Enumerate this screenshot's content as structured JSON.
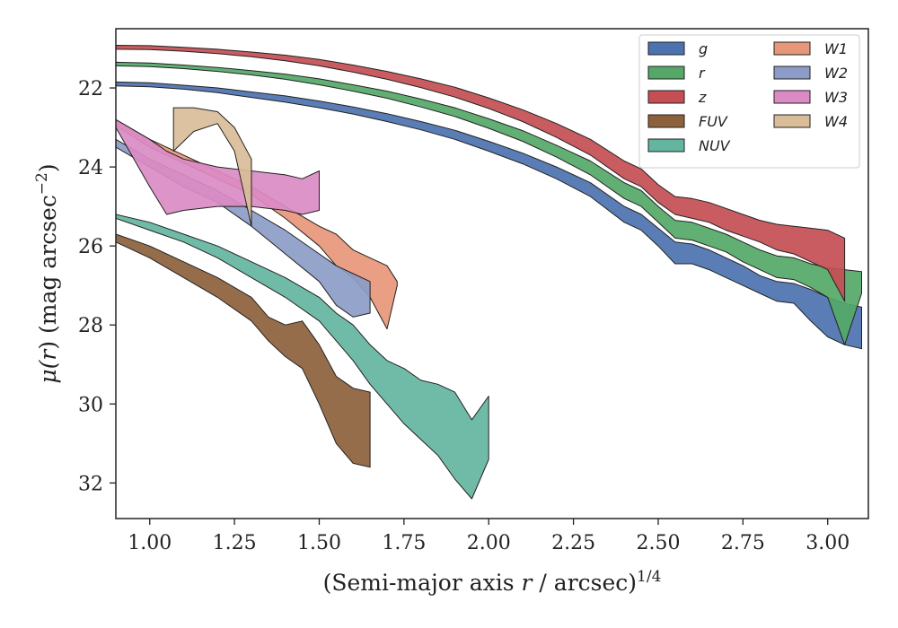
{
  "chart_data": {
    "type": "area",
    "xlabel": "(Semi-major axis r / arcsec)",
    "xlabel_parts": {
      "pre": "(Semi-major axis ",
      "var": "r",
      "post": " / arcsec)",
      "sup": "1/4"
    },
    "ylabel": "μ(r) (mag arcsec⁻²)",
    "ylabel_parts": {
      "mu": "μ(",
      "var": "r",
      "close": ") (mag arcsec",
      "sup": "−2",
      "end": ")"
    },
    "xlim": [
      0.9,
      3.12
    ],
    "ylim": [
      32.9,
      20.5
    ],
    "y_inverted": true,
    "xticks": [
      1.0,
      1.25,
      1.5,
      1.75,
      2.0,
      2.25,
      2.5,
      2.75,
      3.0
    ],
    "xtick_labels": [
      "1.00",
      "1.25",
      "1.50",
      "1.75",
      "2.00",
      "2.25",
      "2.50",
      "2.75",
      "3.00"
    ],
    "yticks": [
      22,
      24,
      26,
      28,
      30,
      32
    ],
    "ytick_labels": [
      "22",
      "24",
      "26",
      "28",
      "30",
      "32"
    ],
    "grid": false,
    "legend_position": "top-right",
    "legend_columns": 2,
    "series": [
      {
        "name": "g",
        "color": "#4c72b0",
        "x": [
          0.9,
          1.0,
          1.1,
          1.2,
          1.3,
          1.4,
          1.5,
          1.6,
          1.7,
          1.8,
          1.9,
          2.0,
          2.1,
          2.2,
          2.3,
          2.4,
          2.45,
          2.5,
          2.55,
          2.6,
          2.65,
          2.7,
          2.75,
          2.8,
          2.85,
          2.9,
          2.95,
          3.0,
          3.05,
          3.1
        ],
        "top": [
          21.85,
          21.87,
          21.93,
          22.0,
          22.1,
          22.2,
          22.33,
          22.48,
          22.65,
          22.85,
          23.07,
          23.35,
          23.65,
          24.0,
          24.4,
          25.0,
          25.2,
          25.55,
          25.9,
          25.95,
          26.1,
          26.3,
          26.5,
          26.75,
          26.9,
          26.95,
          27.1,
          27.3,
          27.45,
          27.55
        ],
        "bottom": [
          21.95,
          21.97,
          22.03,
          22.12,
          22.24,
          22.36,
          22.5,
          22.66,
          22.85,
          23.06,
          23.3,
          23.6,
          23.92,
          24.3,
          24.75,
          25.4,
          25.6,
          26.0,
          26.45,
          26.45,
          26.6,
          26.8,
          27.0,
          27.2,
          27.4,
          27.45,
          27.9,
          28.3,
          28.5,
          28.6
        ]
      },
      {
        "name": "r",
        "color": "#55a868",
        "x": [
          0.9,
          1.0,
          1.1,
          1.2,
          1.3,
          1.4,
          1.5,
          1.6,
          1.7,
          1.8,
          1.9,
          2.0,
          2.1,
          2.2,
          2.3,
          2.4,
          2.45,
          2.5,
          2.55,
          2.6,
          2.65,
          2.7,
          2.75,
          2.8,
          2.85,
          2.9,
          2.95,
          3.0,
          3.05,
          3.1
        ],
        "top": [
          21.35,
          21.37,
          21.42,
          21.48,
          21.56,
          21.65,
          21.77,
          21.92,
          22.08,
          22.28,
          22.5,
          22.78,
          23.08,
          23.45,
          23.85,
          24.4,
          24.6,
          25.0,
          25.35,
          25.4,
          25.55,
          25.7,
          25.9,
          26.1,
          26.25,
          26.3,
          26.45,
          26.55,
          26.6,
          26.65
        ],
        "bottom": [
          21.44,
          21.46,
          21.51,
          21.58,
          21.67,
          21.78,
          21.92,
          22.08,
          22.26,
          22.48,
          22.72,
          23.02,
          23.35,
          23.75,
          24.2,
          24.8,
          25.0,
          25.4,
          25.8,
          25.85,
          26.0,
          26.15,
          26.4,
          26.6,
          26.8,
          26.85,
          27.05,
          27.3,
          28.5,
          27.2
        ]
      },
      {
        "name": "z",
        "color": "#c44e52",
        "x": [
          0.9,
          1.0,
          1.1,
          1.2,
          1.3,
          1.4,
          1.5,
          1.6,
          1.7,
          1.8,
          1.9,
          2.0,
          2.1,
          2.2,
          2.3,
          2.4,
          2.45,
          2.5,
          2.55,
          2.6,
          2.65,
          2.7,
          2.75,
          2.8,
          2.85,
          2.9,
          2.95,
          3.0,
          3.05
        ],
        "top": [
          20.92,
          20.93,
          20.97,
          21.02,
          21.09,
          21.17,
          21.28,
          21.42,
          21.58,
          21.77,
          21.98,
          22.25,
          22.55,
          22.9,
          23.3,
          23.85,
          24.05,
          24.45,
          24.75,
          24.8,
          24.9,
          25.05,
          25.2,
          25.35,
          25.45,
          25.5,
          25.55,
          25.6,
          25.8
        ],
        "bottom": [
          21.02,
          21.03,
          21.07,
          21.13,
          21.21,
          21.31,
          21.44,
          21.6,
          21.78,
          21.99,
          22.23,
          22.52,
          22.85,
          23.25,
          23.7,
          24.3,
          24.5,
          24.9,
          25.2,
          25.3,
          25.4,
          25.6,
          25.75,
          25.9,
          26.1,
          26.2,
          26.4,
          26.6,
          27.4
        ]
      },
      {
        "name": "FUV",
        "color": "#8c613c",
        "x": [
          0.9,
          1.0,
          1.1,
          1.2,
          1.3,
          1.35,
          1.4,
          1.45,
          1.5,
          1.55,
          1.6,
          1.65
        ],
        "top": [
          25.7,
          26.0,
          26.4,
          26.8,
          27.3,
          27.8,
          28.0,
          27.9,
          28.5,
          29.3,
          29.6,
          29.7
        ],
        "bottom": [
          25.9,
          26.3,
          26.8,
          27.3,
          27.9,
          28.4,
          28.8,
          29.1,
          30.0,
          31.0,
          31.5,
          31.6
        ]
      },
      {
        "name": "NUV",
        "color": "#64b5a0",
        "x": [
          0.9,
          1.0,
          1.1,
          1.2,
          1.3,
          1.4,
          1.5,
          1.55,
          1.6,
          1.65,
          1.7,
          1.75,
          1.8,
          1.85,
          1.9,
          1.95,
          2.0
        ],
        "top": [
          25.2,
          25.4,
          25.7,
          26.0,
          26.4,
          26.8,
          27.3,
          27.7,
          28.0,
          28.5,
          28.9,
          29.1,
          29.4,
          29.5,
          29.7,
          30.4,
          29.8
        ],
        "bottom": [
          25.3,
          25.6,
          25.9,
          26.3,
          26.8,
          27.3,
          27.9,
          28.4,
          28.9,
          29.5,
          30.0,
          30.5,
          30.9,
          31.3,
          31.9,
          32.4,
          31.4
        ]
      },
      {
        "name": "W1",
        "color": "#e8967a",
        "x": [
          0.9,
          1.0,
          1.1,
          1.2,
          1.3,
          1.4,
          1.5,
          1.55,
          1.6,
          1.65,
          1.7,
          1.73
        ],
        "top": [
          22.8,
          23.3,
          23.7,
          24.1,
          24.5,
          25.0,
          25.5,
          25.7,
          26.1,
          26.3,
          26.5,
          26.9
        ],
        "bottom": [
          22.95,
          23.5,
          23.9,
          24.3,
          24.7,
          25.3,
          26.0,
          26.5,
          26.8,
          27.3,
          28.1,
          27.0
        ]
      },
      {
        "name": "W2",
        "color": "#8c9cc7",
        "x": [
          0.9,
          1.0,
          1.1,
          1.2,
          1.3,
          1.4,
          1.5,
          1.55,
          1.6,
          1.65
        ],
        "top": [
          23.3,
          23.8,
          24.2,
          24.6,
          25.1,
          25.6,
          26.2,
          26.5,
          26.7,
          26.9
        ],
        "bottom": [
          23.5,
          24.0,
          24.5,
          24.9,
          25.5,
          26.2,
          26.9,
          27.5,
          27.8,
          27.7
        ]
      },
      {
        "name": "W3",
        "color": "#da8bc3",
        "x": [
          0.9,
          1.0,
          1.05,
          1.1,
          1.2,
          1.3,
          1.4,
          1.45,
          1.5
        ],
        "top": [
          22.8,
          23.3,
          23.6,
          23.8,
          24.0,
          24.1,
          24.2,
          24.3,
          24.1
        ],
        "bottom": [
          23.0,
          24.5,
          25.2,
          25.1,
          25.0,
          25.0,
          25.1,
          25.2,
          25.1
        ]
      },
      {
        "name": "W4",
        "color": "#d9bd98",
        "x": [
          1.07,
          1.13,
          1.2,
          1.25,
          1.3
        ],
        "top": [
          22.5,
          22.5,
          22.6,
          23.0,
          23.8
        ],
        "bottom": [
          23.6,
          23.1,
          22.9,
          23.6,
          25.5
        ]
      }
    ]
  }
}
